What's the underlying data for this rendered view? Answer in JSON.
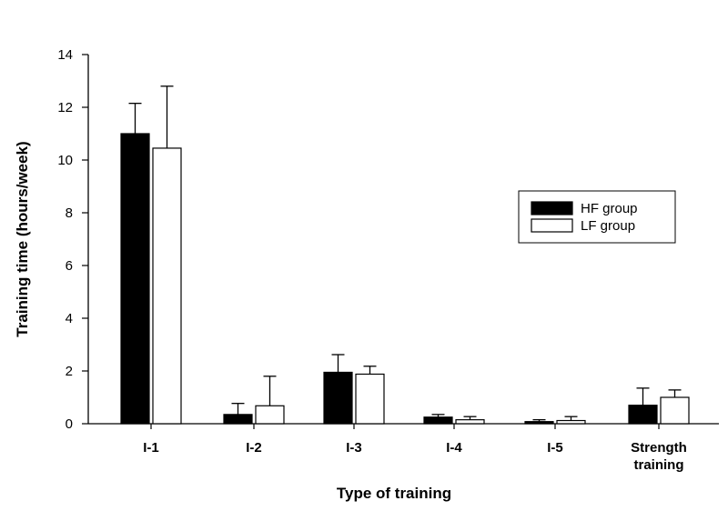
{
  "chart_data": {
    "type": "bar",
    "xlabel": "Type of training",
    "ylabel": "Training time (hours/week)",
    "ylim": [
      0,
      14
    ],
    "yticks": [
      0,
      2,
      4,
      6,
      8,
      10,
      12,
      14
    ],
    "categories": [
      [
        "I-1"
      ],
      [
        "I-2"
      ],
      [
        "I-3"
      ],
      [
        "I-4"
      ],
      [
        "I-5"
      ],
      [
        "Strength",
        "training"
      ]
    ],
    "series": [
      {
        "name": "HF group",
        "color": "#000000",
        "values": [
          11.0,
          0.35,
          1.95,
          0.25,
          0.08,
          0.7
        ],
        "errors": [
          1.15,
          0.42,
          0.67,
          0.1,
          0.07,
          0.65
        ]
      },
      {
        "name": "LF group",
        "color": "#ffffff",
        "values": [
          10.45,
          0.68,
          1.88,
          0.15,
          0.12,
          1.0
        ],
        "errors": [
          2.35,
          1.12,
          0.3,
          0.12,
          0.15,
          0.28
        ]
      }
    ],
    "legend_position": "upper-right",
    "grid": false
  }
}
